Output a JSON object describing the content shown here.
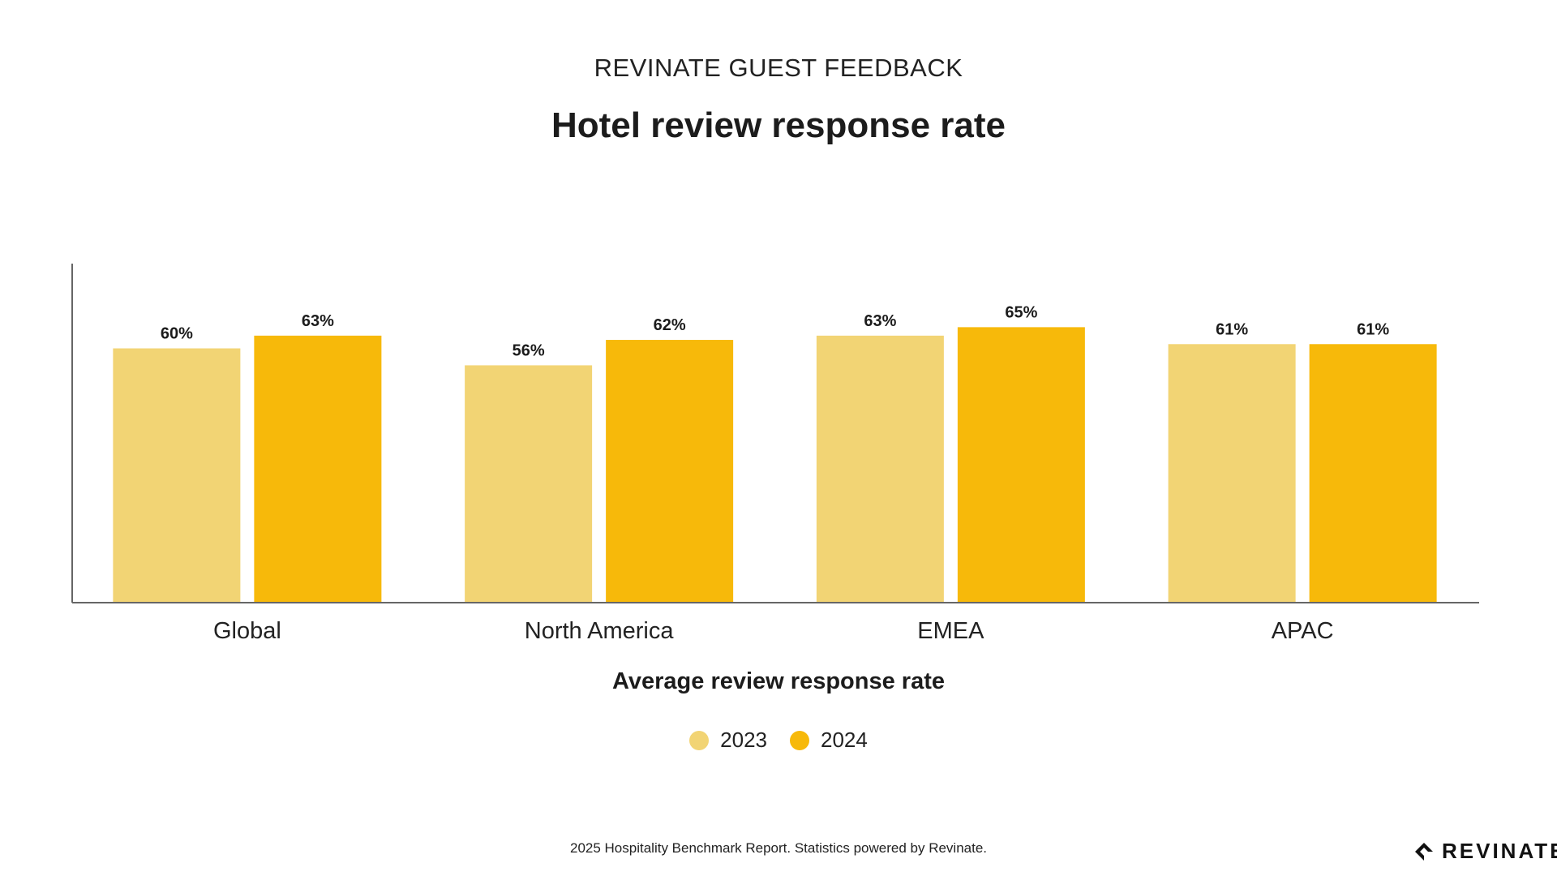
{
  "header": {
    "kicker": "REVINATE GUEST FEEDBACK",
    "title": "Hotel review response rate"
  },
  "chart_data": {
    "type": "bar",
    "title": "Hotel review response rate",
    "xlabel": "Average review response rate",
    "ylabel": "",
    "categories": [
      "Global",
      "North America",
      "EMEA",
      "APAC"
    ],
    "series": [
      {
        "name": "2023",
        "values": [
          60,
          56,
          63,
          61
        ],
        "labels": [
          "60%",
          "56%",
          "63%",
          "61%"
        ],
        "color": "#F2D474"
      },
      {
        "name": "2024",
        "values": [
          63,
          62,
          65,
          61
        ],
        "labels": [
          "63%",
          "62%",
          "65%",
          "61%"
        ],
        "color": "#F7B90A"
      }
    ],
    "ylim": [
      0,
      80
    ],
    "grid": false,
    "legend_position": "bottom-center"
  },
  "footer": {
    "text": "2025 Hospitality Benchmark Report. Statistics powered by Revinate."
  },
  "logo": {
    "text": "REVINATE",
    "icon": "revinate-logo-icon"
  }
}
